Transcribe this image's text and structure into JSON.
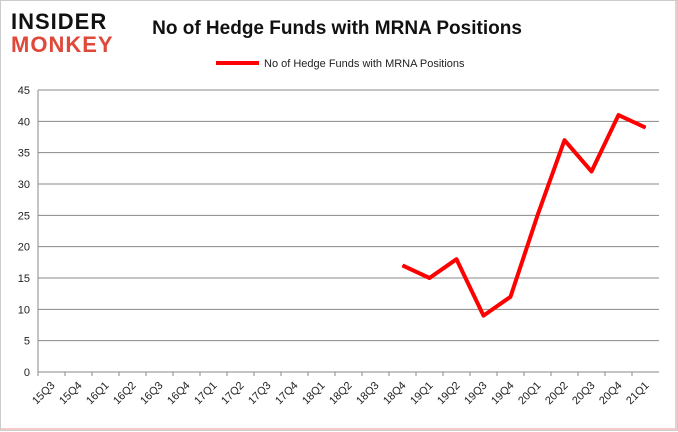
{
  "logo": {
    "line1": "INSIDER",
    "line2": "MONKEY"
  },
  "chart_data": {
    "type": "line",
    "title": "No of Hedge Funds with MRNA Positions",
    "legend": {
      "position": "top",
      "entries": [
        "No of Hedge Funds with MRNA Positions"
      ]
    },
    "categories": [
      "15Q3",
      "15Q4",
      "16Q1",
      "16Q2",
      "16Q3",
      "16Q4",
      "17Q1",
      "17Q2",
      "17Q3",
      "17Q4",
      "18Q1",
      "18Q2",
      "18Q3",
      "18Q4",
      "19Q1",
      "19Q2",
      "19Q3",
      "19Q4",
      "20Q1",
      "20Q2",
      "20Q3",
      "20Q4",
      "21Q1"
    ],
    "series": [
      {
        "name": "No of Hedge Funds with MRNA Positions",
        "color": "#ff0000",
        "values": [
          null,
          null,
          null,
          null,
          null,
          null,
          null,
          null,
          null,
          null,
          null,
          null,
          null,
          17,
          15,
          18,
          9,
          12,
          25,
          37,
          32,
          41,
          39
        ]
      }
    ],
    "ylim": [
      0,
      45
    ],
    "yticks": [
      0,
      5,
      10,
      15,
      20,
      25,
      30,
      35,
      40,
      45
    ],
    "grid": true,
    "xlabel": "",
    "ylabel": ""
  }
}
